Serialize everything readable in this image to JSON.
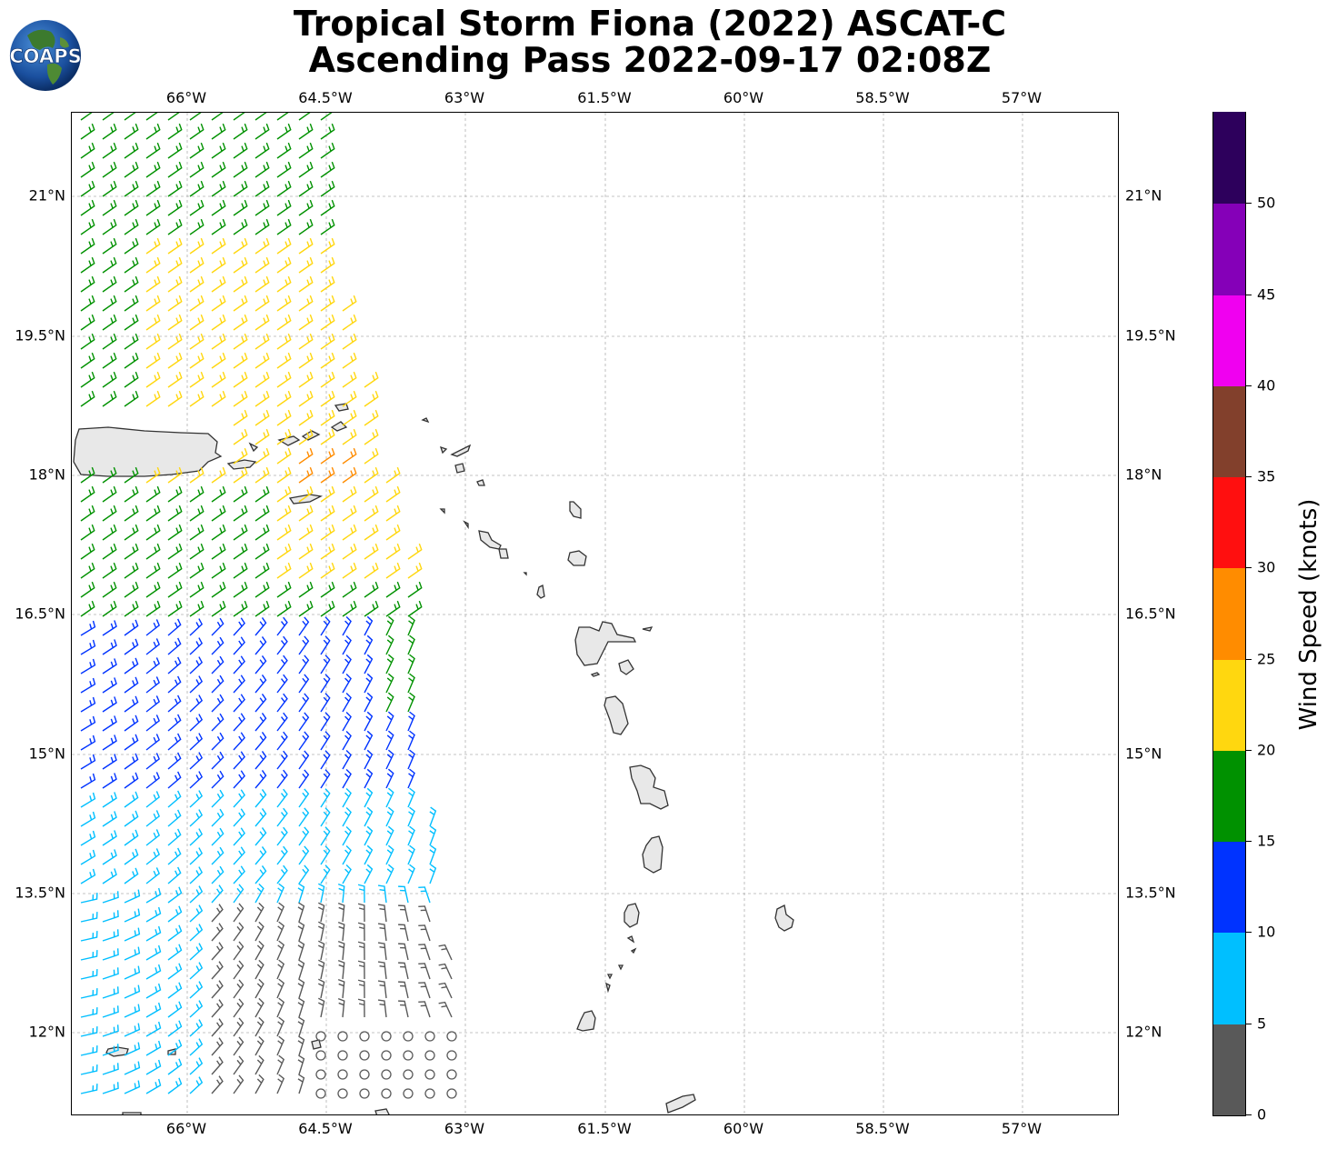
{
  "title": {
    "line1": "Tropical Storm Fiona (2022) ASCAT-C",
    "line2": "Ascending Pass 2022-09-17 02:08Z"
  },
  "logo": {
    "text": "COAPS",
    "icon": "globe-logo-icon"
  },
  "map": {
    "lon_ticks": [
      "66°W",
      "64.5°W",
      "63°W",
      "61.5°W",
      "60°W",
      "58.5°W",
      "57°W"
    ],
    "lat_ticks": [
      "21°N",
      "19.5°N",
      "18°N",
      "16.5°N",
      "15°N",
      "13.5°N",
      "12°N"
    ],
    "gridlines": true,
    "feature": "ASCAT wind barbs over the eastern Caribbean with island coastlines"
  },
  "colorbar": {
    "title": "Wind Speed (knots)",
    "ticks": [
      "0",
      "5",
      "10",
      "15",
      "20",
      "25",
      "30",
      "35",
      "40",
      "45",
      "50"
    ],
    "colors": [
      "#595959",
      "#00bfff",
      "#0033ff",
      "#009100",
      "#ffd70f",
      "#ff8c00",
      "#ff0f0f",
      "#82402c",
      "#f000f0",
      "#8500b8",
      "#2d005c"
    ]
  }
}
